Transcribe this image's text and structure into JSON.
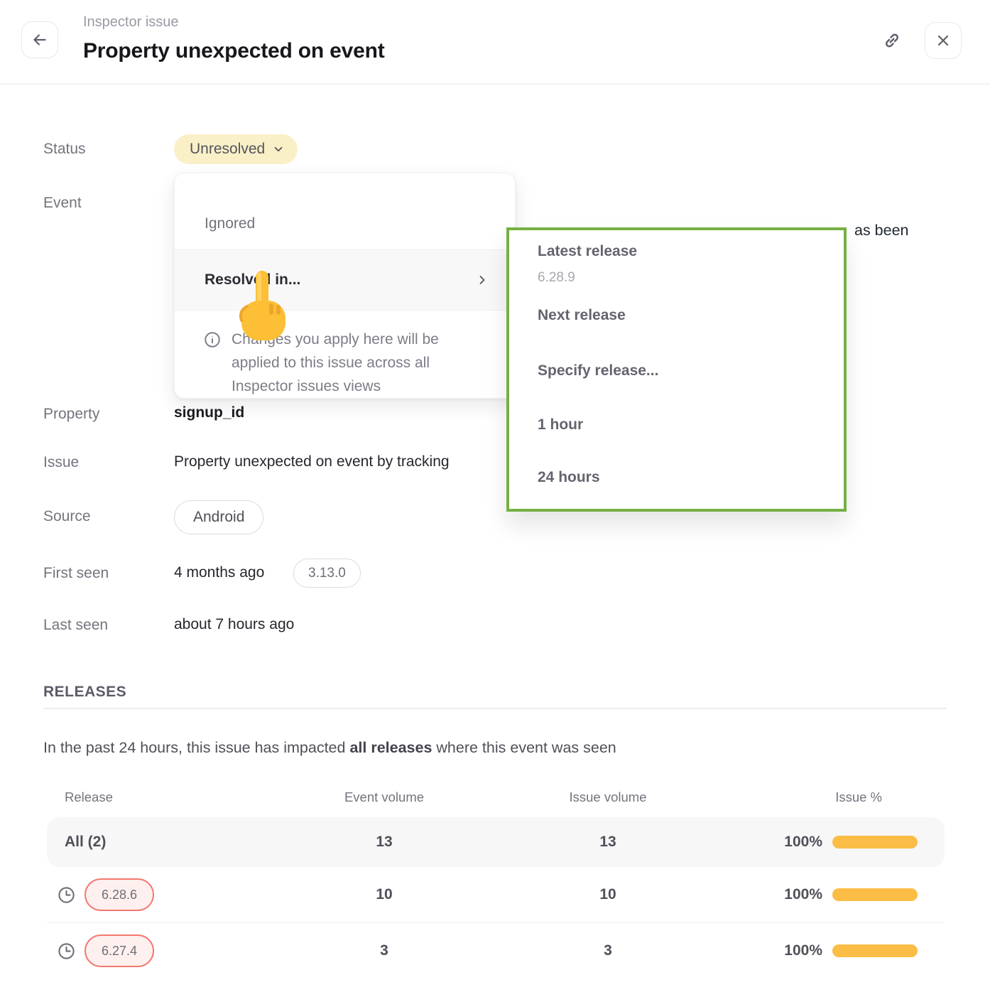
{
  "header": {
    "breadcrumb": "Inspector issue",
    "title": "Property unexpected on event"
  },
  "fields": {
    "status_label": "Status",
    "status_value": "Unresolved",
    "event_label": "Event",
    "event_visible_fragment": "as been",
    "property_label": "Property",
    "property_value": "signup_id",
    "issue_label": "Issue",
    "issue_value": "Property unexpected on event by tracking",
    "source_label": "Source",
    "source_value": "Android",
    "first_seen_label": "First seen",
    "first_seen_value": "4 months ago",
    "first_seen_release": "3.13.0",
    "last_seen_label": "Last seen",
    "last_seen_value": "about 7 hours ago"
  },
  "status_menu": {
    "items": [
      {
        "label": "Ignored"
      },
      {
        "label": "Resolved in..."
      }
    ],
    "info_text": "Changes you apply here will be applied to this issue across all Inspector issues views"
  },
  "resolve_submenu": {
    "items": [
      {
        "label": "Latest release",
        "sublabel": "6.28.9"
      },
      {
        "label": "Next release"
      },
      {
        "label": "Specify release..."
      },
      {
        "label": "1 hour"
      },
      {
        "label": "24 hours"
      }
    ]
  },
  "releases": {
    "section_title": "RELEASES",
    "summary_prefix": "In the past 24 hours, this issue has impacted ",
    "summary_bold": "all releases",
    "summary_suffix": " where this event was seen",
    "table": {
      "columns": [
        "Release",
        "Event volume",
        "Issue volume",
        "Issue %"
      ],
      "rows": [
        {
          "release": "All (2)",
          "event_volume": "13",
          "issue_volume": "13",
          "issue_pct": "100%",
          "pct": 100
        },
        {
          "release": "6.28.6",
          "event_volume": "10",
          "issue_volume": "10",
          "issue_pct": "100%",
          "pct": 100
        },
        {
          "release": "6.27.4",
          "event_volume": "3",
          "issue_volume": "3",
          "issue_pct": "100%",
          "pct": 100
        }
      ]
    }
  },
  "colors": {
    "accent_yellow": "#fbbd45",
    "status_pill_bg": "#faf0c8",
    "submenu_highlight": "#76b043",
    "release_pill_border": "#f4786f",
    "release_pill_bg": "#fdf0ee"
  }
}
